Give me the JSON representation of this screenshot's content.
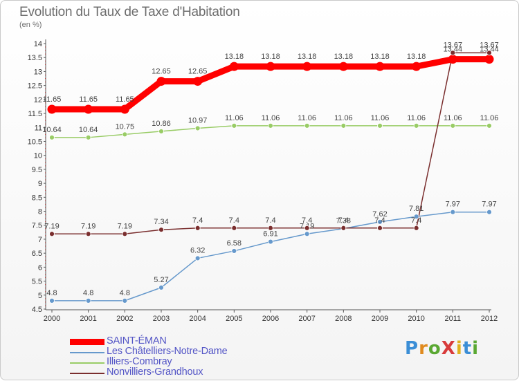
{
  "title": "Evolution du Taux de Taxe d'Habitation",
  "subtitle": "(en %)",
  "logo": "ProXiti",
  "chart_data": {
    "type": "line",
    "title": "Evolution du Taux de Taxe d'Habitation",
    "subtitle": "(en %)",
    "ylim": [
      4.5,
      14
    ],
    "x": [
      "2000",
      "2001",
      "2002",
      "2003",
      "2004",
      "2005",
      "2006",
      "2007",
      "2008",
      "2009",
      "2010",
      "2011",
      "2012"
    ],
    "y_ticks": [
      "4.5",
      "5",
      "5.5",
      "6",
      "6.5",
      "7",
      "7.5",
      "8",
      "8.5",
      "9",
      "9.5",
      "10",
      "10.5",
      "11",
      "11.5",
      "12",
      "12.5",
      "13",
      "13.5",
      "14"
    ],
    "grid": false,
    "legend_position": "bottom-left",
    "series": [
      {
        "name": "SAINT-ÉMAN",
        "color": "#ff0000",
        "values": [
          11.65,
          11.65,
          11.65,
          12.65,
          12.65,
          13.18,
          13.18,
          13.18,
          13.18,
          13.18,
          13.18,
          13.44,
          13.44
        ],
        "labels": [
          "11.65",
          "11.65",
          "11.65",
          "12.65",
          "12.65",
          "13.18",
          "13.18",
          "13.18",
          "13.18",
          "13.18",
          "13.18",
          "13.44",
          "13.44"
        ]
      },
      {
        "name": "Les Châtelliers-Notre-Dame",
        "color": "#6699cc",
        "values": [
          4.8,
          4.8,
          4.8,
          5.27,
          6.32,
          6.58,
          6.91,
          7.19,
          7.38,
          7.62,
          7.81,
          7.97,
          7.97
        ],
        "labels": [
          "4.8",
          "4.8",
          "4.8",
          "5.27",
          "6.32",
          "6.58",
          "6.91",
          "7.19",
          "7.38",
          "7.62",
          "7.81",
          "7.97",
          "7.97"
        ]
      },
      {
        "name": "Illiers-Combray",
        "color": "#99cc66",
        "values": [
          10.64,
          10.64,
          10.75,
          10.86,
          10.97,
          11.06,
          11.06,
          11.06,
          11.06,
          11.06,
          11.06,
          11.06,
          11.06
        ],
        "labels": [
          "10.64",
          "10.64",
          "10.75",
          "10.86",
          "10.97",
          "11.06",
          "11.06",
          "11.06",
          "11.06",
          "11.06",
          "11.06",
          "11.06",
          "11.06"
        ]
      },
      {
        "name": "Nonvilliers-Grandhoux",
        "color": "#7a2e2e",
        "values": [
          7.19,
          7.19,
          7.19,
          7.34,
          7.4,
          7.4,
          7.4,
          7.4,
          7.4,
          7.4,
          7.4,
          13.67,
          13.67
        ],
        "labels": [
          "7.19",
          "7.19",
          "7.19",
          "7.34",
          "7.4",
          "7.4",
          "7.4",
          "7.4",
          "7.4",
          "7.4",
          "7.4",
          "13.67",
          "13.67"
        ]
      }
    ]
  }
}
